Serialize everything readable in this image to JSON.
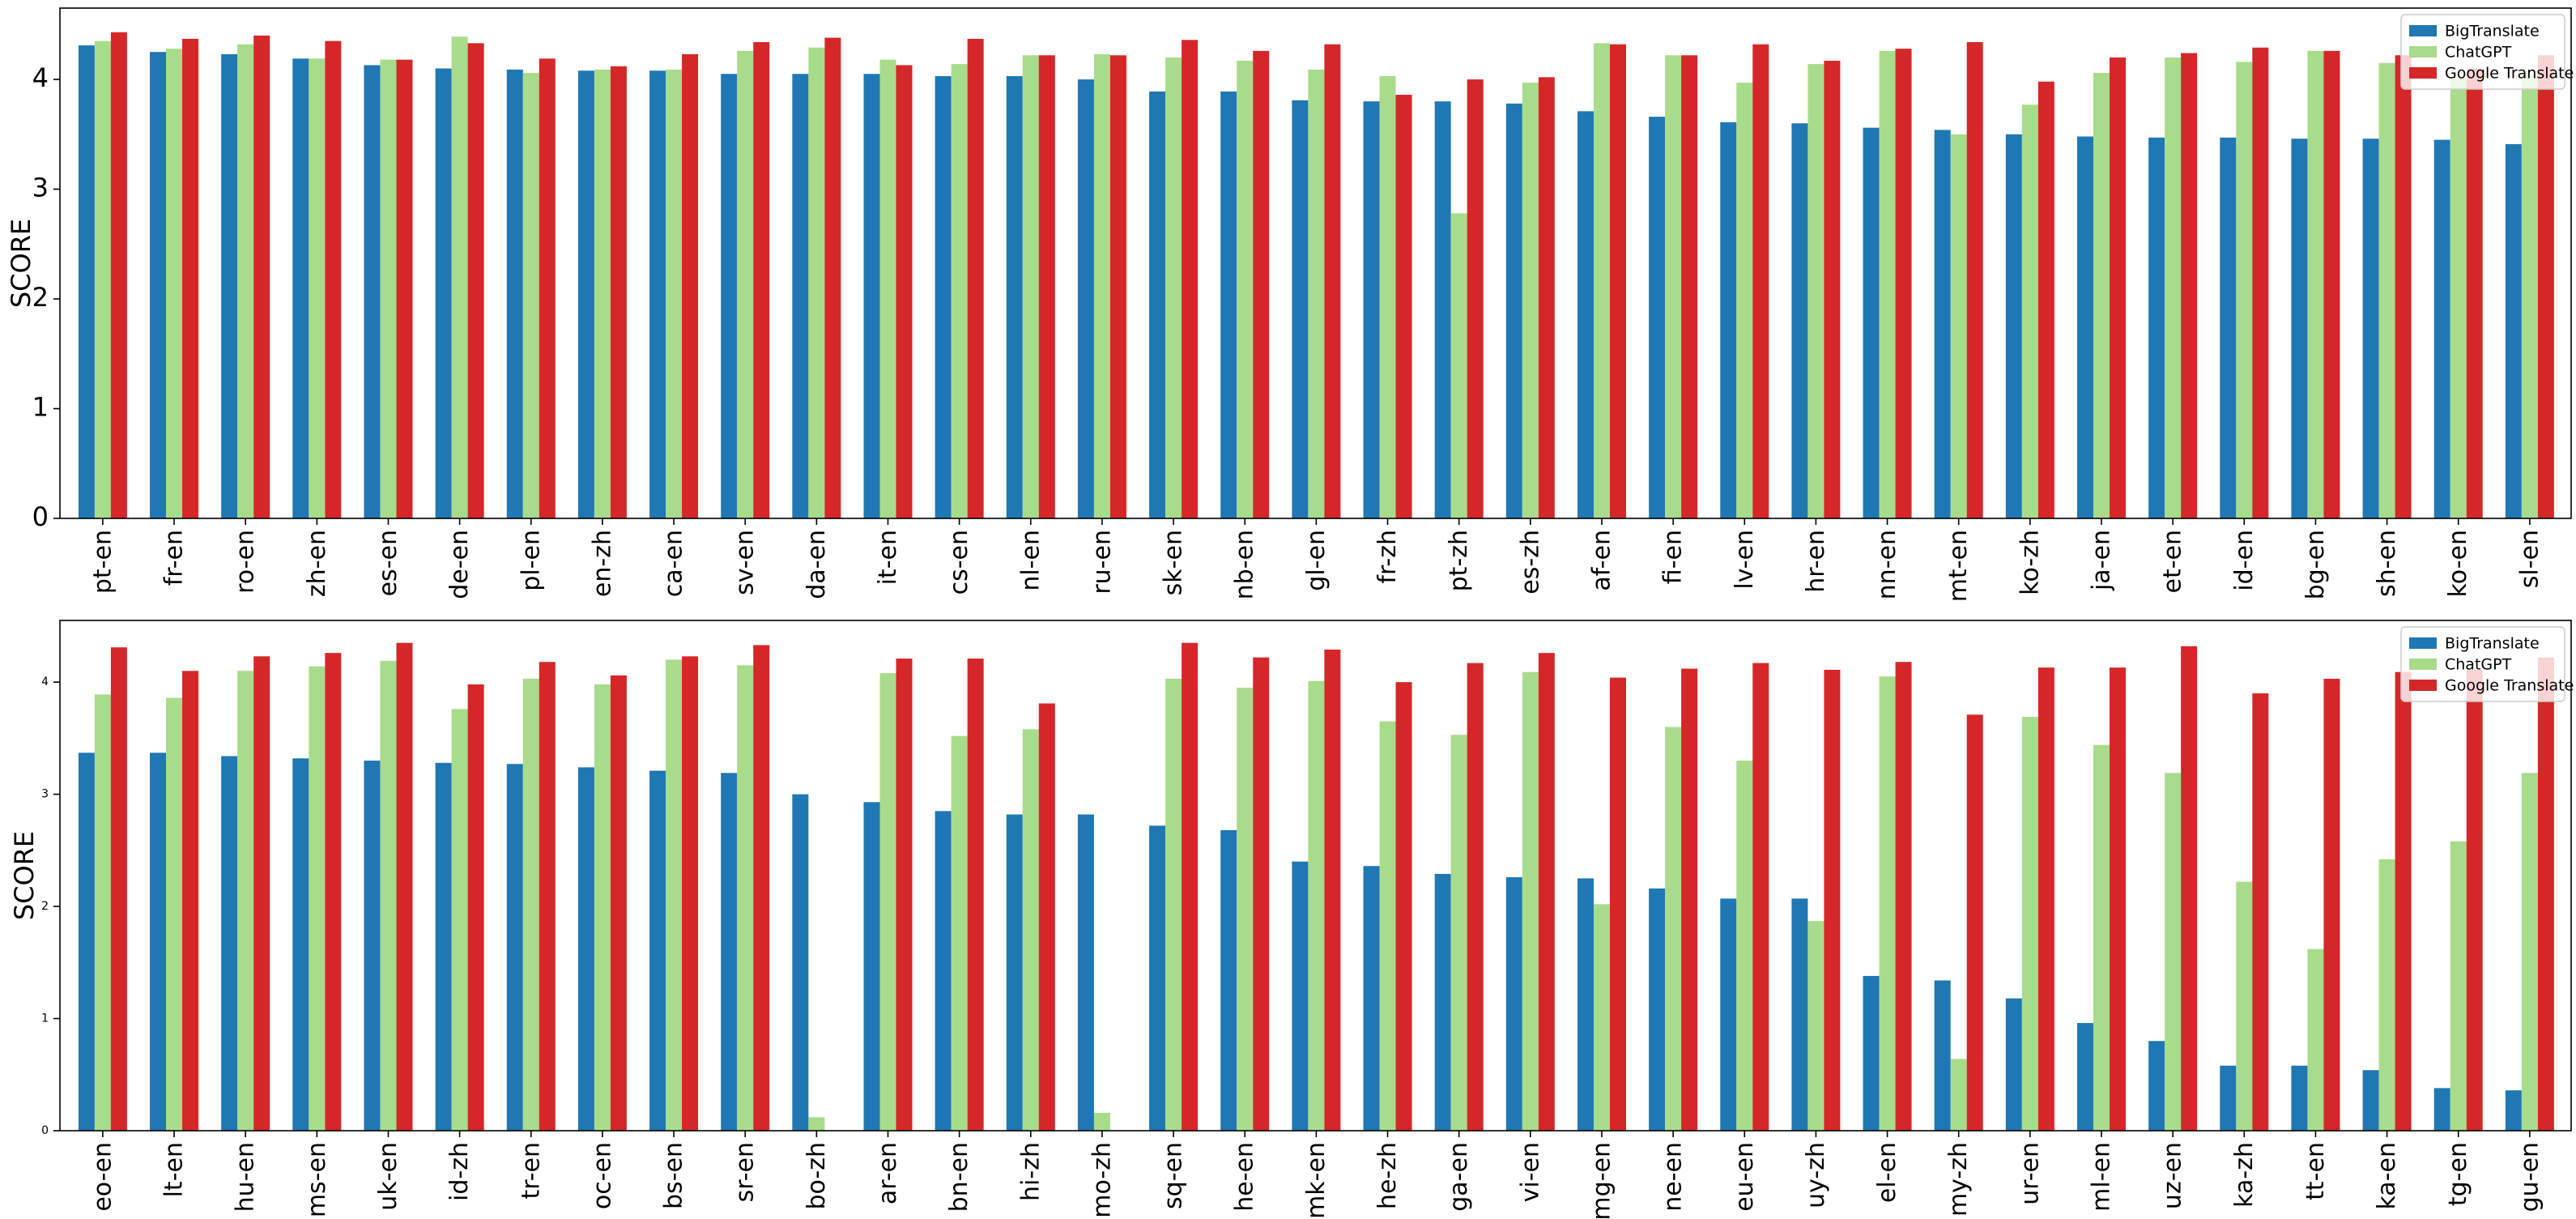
{
  "colors": {
    "BigTranslate": "#1f77b4",
    "ChatGPT": "#a8dc8a",
    "Google Translate": "#d62728"
  },
  "chart_data": [
    {
      "type": "bar",
      "title": "",
      "xlabel": "",
      "ylabel": "SCORE",
      "ylim": [
        0,
        4.65
      ],
      "yticks": [
        "0",
        "1",
        "2",
        "3",
        "4"
      ],
      "grid": false,
      "legend_position": "top-right",
      "categories": [
        "pt-en",
        "fr-en",
        "ro-en",
        "zh-en",
        "es-en",
        "de-en",
        "pl-en",
        "en-zh",
        "ca-en",
        "sv-en",
        "da-en",
        "it-en",
        "cs-en",
        "nl-en",
        "ru-en",
        "sk-en",
        "nb-en",
        "gl-en",
        "fr-zh",
        "pt-zh",
        "es-zh",
        "af-en",
        "fi-en",
        "lv-en",
        "hr-en",
        "nn-en",
        "mt-en",
        "ko-zh",
        "ja-en",
        "et-en",
        "id-en",
        "bg-en",
        "sh-en",
        "ko-en",
        "sl-en"
      ],
      "series": [
        {
          "name": "BigTranslate",
          "values": [
            4.31,
            4.25,
            4.23,
            4.19,
            4.13,
            4.1,
            4.09,
            4.08,
            4.08,
            4.05,
            4.05,
            4.05,
            4.03,
            4.03,
            4.0,
            3.89,
            3.89,
            3.81,
            3.8,
            3.8,
            3.78,
            3.71,
            3.66,
            3.61,
            3.6,
            3.56,
            3.54,
            3.5,
            3.48,
            3.47,
            3.47,
            3.46,
            3.46,
            3.45,
            3.41
          ]
        },
        {
          "name": "ChatGPT",
          "values": [
            4.35,
            4.28,
            4.32,
            4.19,
            4.18,
            4.39,
            4.06,
            4.09,
            4.09,
            4.26,
            4.29,
            4.18,
            4.14,
            4.22,
            4.23,
            4.2,
            4.17,
            4.09,
            4.03,
            2.78,
            3.97,
            4.33,
            4.22,
            3.97,
            4.14,
            4.26,
            3.5,
            3.77,
            4.06,
            4.2,
            4.16,
            4.26,
            4.15,
            4.02,
            4.05
          ]
        },
        {
          "name": "Google Translate",
          "values": [
            4.43,
            4.37,
            4.4,
            4.35,
            4.18,
            4.33,
            4.19,
            4.12,
            4.23,
            4.34,
            4.38,
            4.13,
            4.37,
            4.22,
            4.22,
            4.36,
            4.26,
            4.32,
            3.86,
            4.0,
            4.02,
            4.32,
            4.22,
            4.32,
            4.17,
            4.28,
            4.34,
            3.98,
            4.2,
            4.24,
            4.29,
            4.26,
            4.22,
            4.1,
            4.22
          ]
        }
      ]
    },
    {
      "type": "bar",
      "title": "",
      "xlabel": "",
      "ylabel": "SCORE",
      "ylim": [
        0,
        4.55
      ],
      "yticks": [
        "0",
        "1",
        "2",
        "3",
        "4"
      ],
      "grid": false,
      "legend_position": "top-right",
      "categories": [
        "eo-en",
        "lt-en",
        "hu-en",
        "ms-en",
        "uk-en",
        "id-zh",
        "tr-en",
        "oc-en",
        "bs-en",
        "sr-en",
        "bo-zh",
        "ar-en",
        "bn-en",
        "hi-zh",
        "mo-zh",
        "sq-en",
        "he-en",
        "mk-en",
        "he-zh",
        "ga-en",
        "vi-en",
        "mg-en",
        "ne-en",
        "eu-en",
        "uy-zh",
        "el-en",
        "my-zh",
        "ur-en",
        "ml-en",
        "uz-en",
        "ka-zh",
        "tt-en",
        "ka-en",
        "tg-en",
        "gu-en"
      ],
      "series": [
        {
          "name": "BigTranslate",
          "values": [
            3.37,
            3.37,
            3.34,
            3.32,
            3.3,
            3.28,
            3.27,
            3.24,
            3.21,
            3.19,
            3.0,
            2.93,
            2.85,
            2.82,
            2.82,
            2.72,
            2.68,
            2.4,
            2.36,
            2.29,
            2.26,
            2.25,
            2.16,
            2.07,
            2.07,
            1.38,
            1.34,
            1.18,
            0.96,
            0.8,
            0.58,
            0.58,
            0.54,
            0.38,
            0.36
          ]
        },
        {
          "name": "ChatGPT",
          "values": [
            3.89,
            3.86,
            4.1,
            4.14,
            4.19,
            3.76,
            4.03,
            3.98,
            4.2,
            4.15,
            0.12,
            4.08,
            3.52,
            3.58,
            0.16,
            4.03,
            3.95,
            4.01,
            3.65,
            3.53,
            4.09,
            2.02,
            3.6,
            3.3,
            1.87,
            4.05,
            0.64,
            3.69,
            3.44,
            3.19,
            2.22,
            1.62,
            2.42,
            2.58,
            3.19
          ]
        },
        {
          "name": "Google Translate",
          "values": [
            4.31,
            4.1,
            4.23,
            4.26,
            4.35,
            3.98,
            4.18,
            4.06,
            4.23,
            4.33,
            0,
            4.21,
            4.21,
            3.81,
            0,
            4.35,
            4.22,
            4.29,
            4.0,
            4.17,
            4.26,
            4.04,
            4.12,
            4.17,
            4.11,
            4.18,
            3.71,
            4.13,
            4.13,
            4.32,
            3.9,
            4.03,
            4.09,
            4.11,
            4.22
          ]
        }
      ]
    }
  ]
}
